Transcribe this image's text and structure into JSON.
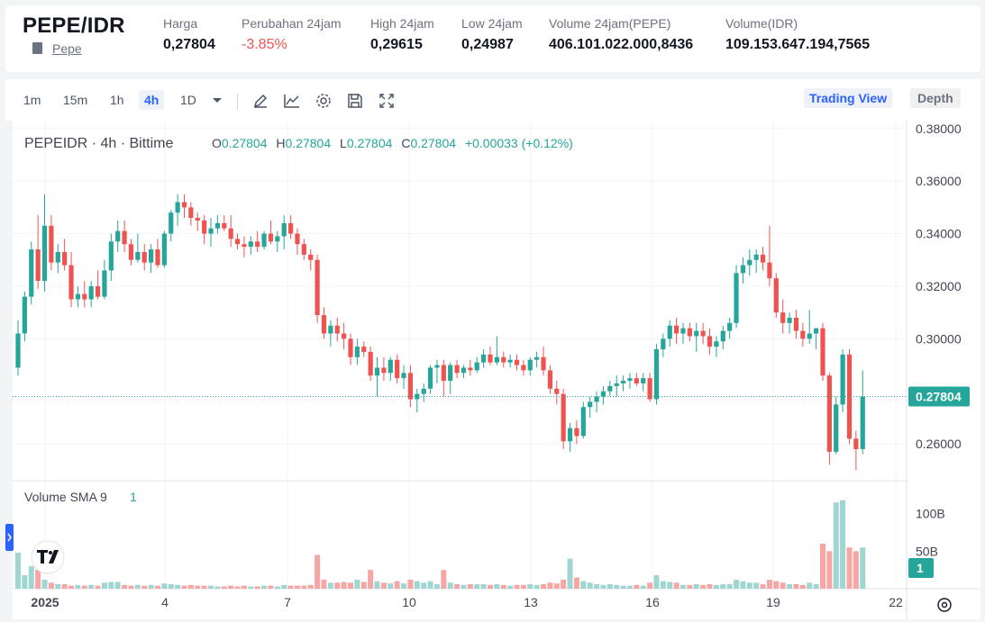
{
  "header": {
    "pair": "PEPE/IDR",
    "coin_link": "Pepe",
    "stats": [
      {
        "label": "Harga",
        "value": "0,27804"
      },
      {
        "label": "Perubahan 24jam",
        "value": "-3.85%"
      },
      {
        "label": "High 24jam",
        "value": "0,29615"
      },
      {
        "label": "Low 24jam",
        "value": "0,24987"
      },
      {
        "label": "Volume 24jam(PEPE)",
        "value": "406.101.022.000,8436"
      },
      {
        "label": "Volume(IDR)",
        "value": "109.153.647.194,7565"
      }
    ]
  },
  "toolbar": {
    "timeframes": [
      "1m",
      "15m",
      "1h",
      "4h",
      "1D"
    ],
    "active_timeframe": "4h",
    "tools": [
      "drawing-icon",
      "indicator-icon",
      "settings-icon",
      "save-icon",
      "fullscreen-icon"
    ],
    "trading_view_label": "Trading View",
    "depth_label": "Depth"
  },
  "legend": {
    "symbol": "PEPEIDR · 4h · Bittime",
    "o_label": "O",
    "o": "0.27804",
    "h_label": "H",
    "h": "0.27804",
    "l_label": "L",
    "l": "0.27804",
    "c_label": "C",
    "c": "0.27804",
    "change": "+0.00033 (+0.12%)"
  },
  "volume_legend": {
    "label": "Volume SMA 9",
    "value": "1"
  },
  "price_axis": [
    "0.38000",
    "0.36000",
    "0.34000",
    "0.32000",
    "0.30000",
    "0.26000"
  ],
  "current_price_label": "0.27804",
  "volume_axis": [
    "100B",
    "50B"
  ],
  "volume_current_label": "1",
  "time_axis": [
    "2025",
    "4",
    "7",
    "10",
    "13",
    "16",
    "19",
    "22"
  ],
  "colors": {
    "up": "#26a69a",
    "down": "#ef5350",
    "accent": "#2962ff"
  },
  "chart_data": {
    "type": "candlestick",
    "price_range": [
      0.246,
      0.383
    ],
    "volume_range_billions": [
      0,
      120
    ],
    "candles": [
      [
        0.289,
        0.307,
        0.286,
        0.302,
        48
      ],
      [
        0.302,
        0.318,
        0.299,
        0.316,
        18
      ],
      [
        0.316,
        0.337,
        0.313,
        0.334,
        30
      ],
      [
        0.334,
        0.347,
        0.319,
        0.322,
        25
      ],
      [
        0.322,
        0.355,
        0.318,
        0.343,
        12
      ],
      [
        0.343,
        0.347,
        0.326,
        0.329,
        8
      ],
      [
        0.329,
        0.336,
        0.325,
        0.333,
        6
      ],
      [
        0.333,
        0.338,
        0.326,
        0.328,
        6
      ],
      [
        0.328,
        0.333,
        0.312,
        0.315,
        4
      ],
      [
        0.315,
        0.32,
        0.312,
        0.317,
        5
      ],
      [
        0.317,
        0.322,
        0.312,
        0.315,
        4
      ],
      [
        0.315,
        0.322,
        0.312,
        0.32,
        5
      ],
      [
        0.32,
        0.326,
        0.315,
        0.316,
        4
      ],
      [
        0.316,
        0.33,
        0.315,
        0.326,
        8
      ],
      [
        0.326,
        0.34,
        0.322,
        0.337,
        9
      ],
      [
        0.337,
        0.345,
        0.333,
        0.341,
        9
      ],
      [
        0.341,
        0.345,
        0.333,
        0.336,
        5
      ],
      [
        0.336,
        0.338,
        0.328,
        0.33,
        4
      ],
      [
        0.33,
        0.34,
        0.329,
        0.333,
        5
      ],
      [
        0.333,
        0.336,
        0.326,
        0.329,
        4
      ],
      [
        0.329,
        0.336,
        0.325,
        0.334,
        5
      ],
      [
        0.334,
        0.338,
        0.327,
        0.328,
        4
      ],
      [
        0.328,
        0.341,
        0.327,
        0.34,
        7
      ],
      [
        0.34,
        0.349,
        0.337,
        0.348,
        6
      ],
      [
        0.348,
        0.355,
        0.343,
        0.352,
        5
      ],
      [
        0.352,
        0.355,
        0.346,
        0.35,
        4
      ],
      [
        0.35,
        0.352,
        0.343,
        0.346,
        5
      ],
      [
        0.346,
        0.348,
        0.341,
        0.345,
        4
      ],
      [
        0.345,
        0.347,
        0.336,
        0.34,
        4
      ],
      [
        0.34,
        0.346,
        0.335,
        0.342,
        4
      ],
      [
        0.342,
        0.347,
        0.34,
        0.344,
        3
      ],
      [
        0.344,
        0.347,
        0.341,
        0.342,
        3
      ],
      [
        0.342,
        0.347,
        0.335,
        0.338,
        4
      ],
      [
        0.338,
        0.34,
        0.334,
        0.336,
        3
      ],
      [
        0.336,
        0.339,
        0.331,
        0.335,
        4
      ],
      [
        0.335,
        0.339,
        0.332,
        0.337,
        3
      ],
      [
        0.337,
        0.341,
        0.333,
        0.335,
        3
      ],
      [
        0.335,
        0.341,
        0.334,
        0.34,
        4
      ],
      [
        0.34,
        0.345,
        0.336,
        0.337,
        4
      ],
      [
        0.337,
        0.341,
        0.333,
        0.339,
        3
      ],
      [
        0.339,
        0.347,
        0.334,
        0.344,
        5
      ],
      [
        0.344,
        0.347,
        0.338,
        0.34,
        4
      ],
      [
        0.34,
        0.342,
        0.332,
        0.336,
        4
      ],
      [
        0.336,
        0.338,
        0.33,
        0.332,
        4
      ],
      [
        0.332,
        0.334,
        0.326,
        0.33,
        5
      ],
      [
        0.33,
        0.332,
        0.306,
        0.309,
        45
      ],
      [
        0.309,
        0.312,
        0.3,
        0.302,
        12
      ],
      [
        0.302,
        0.307,
        0.297,
        0.305,
        8
      ],
      [
        0.305,
        0.308,
        0.299,
        0.302,
        8
      ],
      [
        0.302,
        0.306,
        0.296,
        0.3,
        9
      ],
      [
        0.3,
        0.302,
        0.29,
        0.293,
        8
      ],
      [
        0.293,
        0.3,
        0.29,
        0.297,
        12
      ],
      [
        0.297,
        0.299,
        0.293,
        0.295,
        9
      ],
      [
        0.295,
        0.297,
        0.284,
        0.286,
        25
      ],
      [
        0.286,
        0.293,
        0.278,
        0.289,
        10
      ],
      [
        0.289,
        0.293,
        0.284,
        0.287,
        8
      ],
      [
        0.287,
        0.293,
        0.284,
        0.292,
        7
      ],
      [
        0.292,
        0.294,
        0.283,
        0.285,
        10
      ],
      [
        0.285,
        0.29,
        0.281,
        0.287,
        7
      ],
      [
        0.287,
        0.29,
        0.274,
        0.277,
        12
      ],
      [
        0.277,
        0.281,
        0.272,
        0.279,
        10
      ],
      [
        0.279,
        0.283,
        0.276,
        0.281,
        8
      ],
      [
        0.281,
        0.29,
        0.279,
        0.289,
        10
      ],
      [
        0.289,
        0.292,
        0.283,
        0.29,
        6
      ],
      [
        0.29,
        0.292,
        0.278,
        0.284,
        25
      ],
      [
        0.284,
        0.291,
        0.279,
        0.29,
        8
      ],
      [
        0.29,
        0.292,
        0.285,
        0.287,
        6
      ],
      [
        0.287,
        0.29,
        0.285,
        0.289,
        5
      ],
      [
        0.289,
        0.292,
        0.286,
        0.288,
        6
      ],
      [
        0.288,
        0.293,
        0.287,
        0.291,
        6
      ],
      [
        0.291,
        0.296,
        0.289,
        0.294,
        6
      ],
      [
        0.294,
        0.297,
        0.29,
        0.291,
        5
      ],
      [
        0.291,
        0.301,
        0.29,
        0.293,
        6
      ],
      [
        0.293,
        0.295,
        0.289,
        0.291,
        5
      ],
      [
        0.291,
        0.294,
        0.289,
        0.292,
        4
      ],
      [
        0.292,
        0.294,
        0.288,
        0.29,
        5
      ],
      [
        0.29,
        0.292,
        0.286,
        0.288,
        5
      ],
      [
        0.288,
        0.293,
        0.286,
        0.292,
        6
      ],
      [
        0.292,
        0.295,
        0.289,
        0.293,
        5
      ],
      [
        0.293,
        0.297,
        0.286,
        0.288,
        6
      ],
      [
        0.288,
        0.29,
        0.279,
        0.281,
        8
      ],
      [
        0.281,
        0.284,
        0.275,
        0.279,
        7
      ],
      [
        0.279,
        0.281,
        0.258,
        0.261,
        12
      ],
      [
        0.261,
        0.268,
        0.257,
        0.266,
        40
      ],
      [
        0.266,
        0.269,
        0.26,
        0.263,
        15
      ],
      [
        0.263,
        0.276,
        0.262,
        0.274,
        10
      ],
      [
        0.274,
        0.278,
        0.27,
        0.276,
        8
      ],
      [
        0.276,
        0.28,
        0.272,
        0.278,
        6
      ],
      [
        0.278,
        0.282,
        0.275,
        0.28,
        5
      ],
      [
        0.28,
        0.284,
        0.278,
        0.282,
        6
      ],
      [
        0.282,
        0.286,
        0.278,
        0.283,
        5
      ],
      [
        0.283,
        0.286,
        0.28,
        0.284,
        4
      ],
      [
        0.284,
        0.287,
        0.281,
        0.285,
        4
      ],
      [
        0.285,
        0.287,
        0.282,
        0.283,
        5
      ],
      [
        0.283,
        0.287,
        0.28,
        0.285,
        4
      ],
      [
        0.285,
        0.287,
        0.276,
        0.277,
        8
      ],
      [
        0.277,
        0.298,
        0.275,
        0.296,
        18
      ],
      [
        0.296,
        0.302,
        0.293,
        0.3,
        10
      ],
      [
        0.3,
        0.307,
        0.297,
        0.305,
        9
      ],
      [
        0.305,
        0.308,
        0.298,
        0.302,
        8
      ],
      [
        0.302,
        0.306,
        0.298,
        0.304,
        5
      ],
      [
        0.304,
        0.306,
        0.299,
        0.301,
        5
      ],
      [
        0.301,
        0.306,
        0.295,
        0.303,
        6
      ],
      [
        0.303,
        0.306,
        0.298,
        0.301,
        5
      ],
      [
        0.301,
        0.304,
        0.294,
        0.297,
        6
      ],
      [
        0.297,
        0.301,
        0.293,
        0.299,
        5
      ],
      [
        0.299,
        0.305,
        0.296,
        0.303,
        6
      ],
      [
        0.303,
        0.308,
        0.3,
        0.306,
        6
      ],
      [
        0.306,
        0.328,
        0.304,
        0.325,
        12
      ],
      [
        0.325,
        0.331,
        0.321,
        0.328,
        10
      ],
      [
        0.328,
        0.334,
        0.324,
        0.33,
        8
      ],
      [
        0.33,
        0.334,
        0.325,
        0.332,
        8
      ],
      [
        0.332,
        0.335,
        0.326,
        0.329,
        6
      ],
      [
        0.329,
        0.343,
        0.32,
        0.323,
        12
      ],
      [
        0.323,
        0.325,
        0.308,
        0.31,
        10
      ],
      [
        0.31,
        0.315,
        0.302,
        0.306,
        8
      ],
      [
        0.306,
        0.31,
        0.302,
        0.308,
        6
      ],
      [
        0.308,
        0.311,
        0.3,
        0.303,
        6
      ],
      [
        0.303,
        0.306,
        0.297,
        0.3,
        5
      ],
      [
        0.3,
        0.311,
        0.298,
        0.302,
        8
      ],
      [
        0.302,
        0.304,
        0.296,
        0.304,
        6
      ],
      [
        0.304,
        0.306,
        0.284,
        0.286,
        60
      ],
      [
        0.286,
        0.287,
        0.252,
        0.257,
        50
      ],
      [
        0.257,
        0.278,
        0.256,
        0.275,
        115
      ],
      [
        0.275,
        0.296,
        0.272,
        0.294,
        118
      ],
      [
        0.294,
        0.296,
        0.26,
        0.262,
        55
      ],
      [
        0.262,
        0.265,
        0.25,
        0.258,
        50
      ],
      [
        0.258,
        0.288,
        0.256,
        0.278,
        55
      ]
    ]
  }
}
